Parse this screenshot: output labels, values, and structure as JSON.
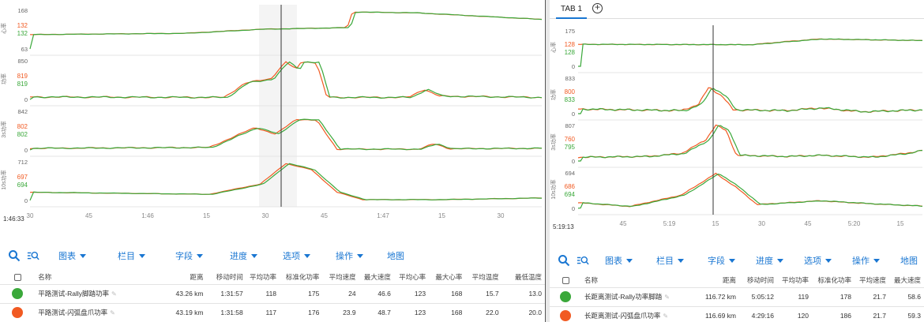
{
  "colors": {
    "orange": "#f15a22",
    "green": "#3aa83a",
    "accent": "#1976d2",
    "grid": "#e4e4e4",
    "cursor": "#333333"
  },
  "left": {
    "cursor_time": "1:46:33",
    "x_ticks": [
      "30",
      "45",
      "1:46",
      "15",
      "30",
      "45",
      "1:47",
      "15",
      "30"
    ],
    "panels": [
      {
        "label": "心率",
        "top": "168",
        "bottom": "63",
        "orange_value": "132",
        "green_value": "132"
      },
      {
        "label": "功率",
        "top": "850",
        "bottom": "0",
        "orange_value": "819",
        "green_value": "819"
      },
      {
        "label": "3s功率",
        "top": "842",
        "bottom": "0",
        "orange_value": "802",
        "green_value": "802"
      },
      {
        "label": "10s功率",
        "top": "712",
        "bottom": "0",
        "orange_value": "697",
        "green_value": "694"
      }
    ],
    "table": {
      "headers": [
        "名称",
        "距离",
        "移动时间",
        "平均功率",
        "标准化功率",
        "平均速度",
        "最大速度",
        "平均心率",
        "最大心率",
        "平均温度",
        "最低温度"
      ],
      "rows": [
        {
          "color": "#3aa83a",
          "cells": [
            "平路测试-Rally脚踏功率",
            "43.26 km",
            "1:31:57",
            "118",
            "175",
            "24",
            "46.6",
            "123",
            "168",
            "15.7",
            "13.0"
          ]
        },
        {
          "color": "#f15a22",
          "cells": [
            "平路测试-闪弧盘爪功率",
            "43.19 km",
            "1:31:58",
            "117",
            "176",
            "23.9",
            "48.7",
            "123",
            "168",
            "22.0",
            "20.0"
          ]
        }
      ]
    }
  },
  "right": {
    "tab_label": "TAB 1",
    "cursor_time": "5:19:13",
    "x_ticks": [
      "45",
      "5:19",
      "15",
      "30",
      "45",
      "5:20",
      "15"
    ],
    "panels": [
      {
        "label": "心率",
        "top": "175",
        "bottom": "0",
        "orange_value": "128",
        "green_value": "128"
      },
      {
        "label": "功率",
        "top": "833",
        "bottom": "0",
        "orange_value": "800",
        "green_value": "833"
      },
      {
        "label": "3s功率",
        "top": "807",
        "bottom": "0",
        "orange_value": "760",
        "green_value": "795"
      },
      {
        "label": "10s功率",
        "top": "694",
        "bottom": "0",
        "orange_value": "686",
        "green_value": "694"
      }
    ],
    "table": {
      "headers": [
        "名称",
        "距离",
        "移动时间",
        "平均功率",
        "标准化功率",
        "平均速度",
        "最大速度"
      ],
      "rows": [
        {
          "color": "#3aa83a",
          "cells": [
            "长距离测试-Rally功率脚踏",
            "116.72 km",
            "5:05:12",
            "119",
            "178",
            "21.7",
            "58.6"
          ]
        },
        {
          "color": "#f15a22",
          "cells": [
            "长距离测试-闪弧盘爪功率",
            "116.69 km",
            "4:29:16",
            "120",
            "186",
            "21.7",
            "59.3"
          ]
        }
      ]
    }
  },
  "toolbar": {
    "search_icon": "search-icon",
    "zoom_icon": "zoom-list-icon",
    "menus": [
      "图表",
      "栏目",
      "字段",
      "进度",
      "选项",
      "操作"
    ],
    "map_label": "地图"
  }
}
